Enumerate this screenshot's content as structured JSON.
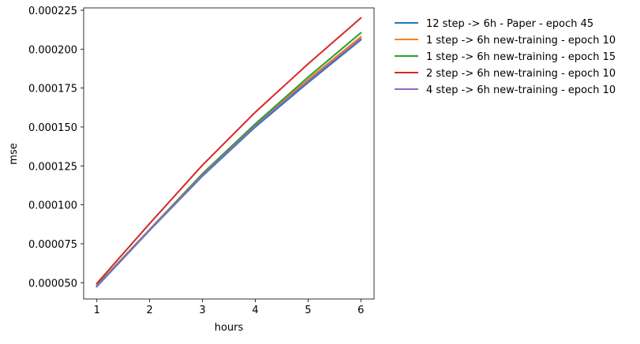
{
  "chart_data": {
    "type": "line",
    "title": "",
    "xlabel": "hours",
    "ylabel": "mse",
    "x": [
      1,
      2,
      3,
      4,
      5,
      6
    ],
    "xlim": [
      0.75,
      6.25
    ],
    "ylim": [
      3.95e-05,
      0.0002265
    ],
    "xticks": [
      1,
      2,
      3,
      4,
      5,
      6
    ],
    "yticks": [
      5e-05,
      7.5e-05,
      0.0001,
      0.000125,
      0.00015,
      0.000175,
      0.0002,
      0.000225
    ],
    "ytick_labels": [
      "0.000050",
      "0.000075",
      "0.000100",
      "0.000125",
      "0.000150",
      "0.000175",
      "0.000200",
      "0.000225"
    ],
    "grid": false,
    "legend_position": "outside-right",
    "series": [
      {
        "name": "12 step -> 6h - Paper - epoch 45",
        "color": "#1f77b4",
        "values": [
          4.75e-05,
          8.36e-05,
          0.0001185,
          0.00015,
          0.0001785,
          0.000206
        ]
      },
      {
        "name": "1 step -> 6h new-training - epoch 10",
        "color": "#ff7f0e",
        "values": [
          4.8e-05,
          8.4e-05,
          0.0001195,
          0.0001515,
          0.0001805,
          0.000208
        ]
      },
      {
        "name": "1 step -> 6h new-training - epoch 15",
        "color": "#2ca02c",
        "values": [
          4.83e-05,
          8.42e-05,
          0.00012,
          0.000152,
          0.000182,
          0.0002105
        ]
      },
      {
        "name": "2 step -> 6h new-training - epoch 10",
        "color": "#d62728",
        "values": [
          4.95e-05,
          8.8e-05,
          0.0001255,
          0.0001595,
          0.0001905,
          0.00022
        ]
      },
      {
        "name": "4 step -> 6h new-training - epoch 10",
        "color": "#9467bd",
        "values": [
          4.78e-05,
          8.38e-05,
          0.000119,
          0.0001508,
          0.0001795,
          0.0002068
        ]
      }
    ]
  }
}
